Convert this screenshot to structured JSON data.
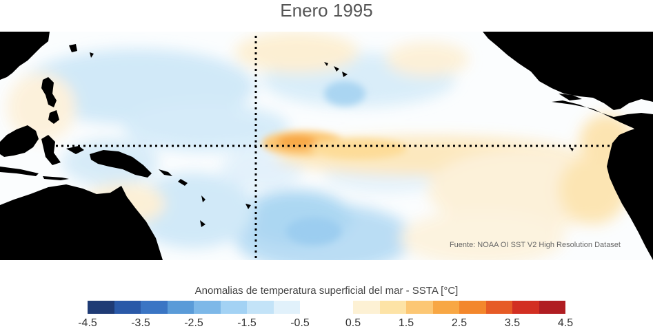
{
  "title": "Enero 1995",
  "credit": "Fuente: NOAA OI SST V2 High Resolution Dataset",
  "colorbar": {
    "title": "Anomalias de temperatura superficial del mar - SSTA  [°C]",
    "tick_labels": [
      "-4.5",
      "-3.5",
      "-2.5",
      "-1.5",
      "-0.5",
      "0.5",
      "1.5",
      "2.5",
      "3.5",
      "4.5"
    ],
    "range": [
      -4.5,
      4.5
    ],
    "step": 0.5,
    "colors": [
      "#1f3b75",
      "#2a59a8",
      "#3a75c4",
      "#5a9bd8",
      "#7db8e8",
      "#a3d2f4",
      "#c3e3f8",
      "#e1f1fb",
      "#ffffff",
      "#ffffff",
      "#fdf1d4",
      "#fde3a6",
      "#fcc774",
      "#f8a744",
      "#f3872c",
      "#e65b26",
      "#d22f22",
      "#b01d22"
    ]
  },
  "map": {
    "land_color": "#000000",
    "guide_lines": [
      "equator",
      "dateline"
    ]
  }
}
